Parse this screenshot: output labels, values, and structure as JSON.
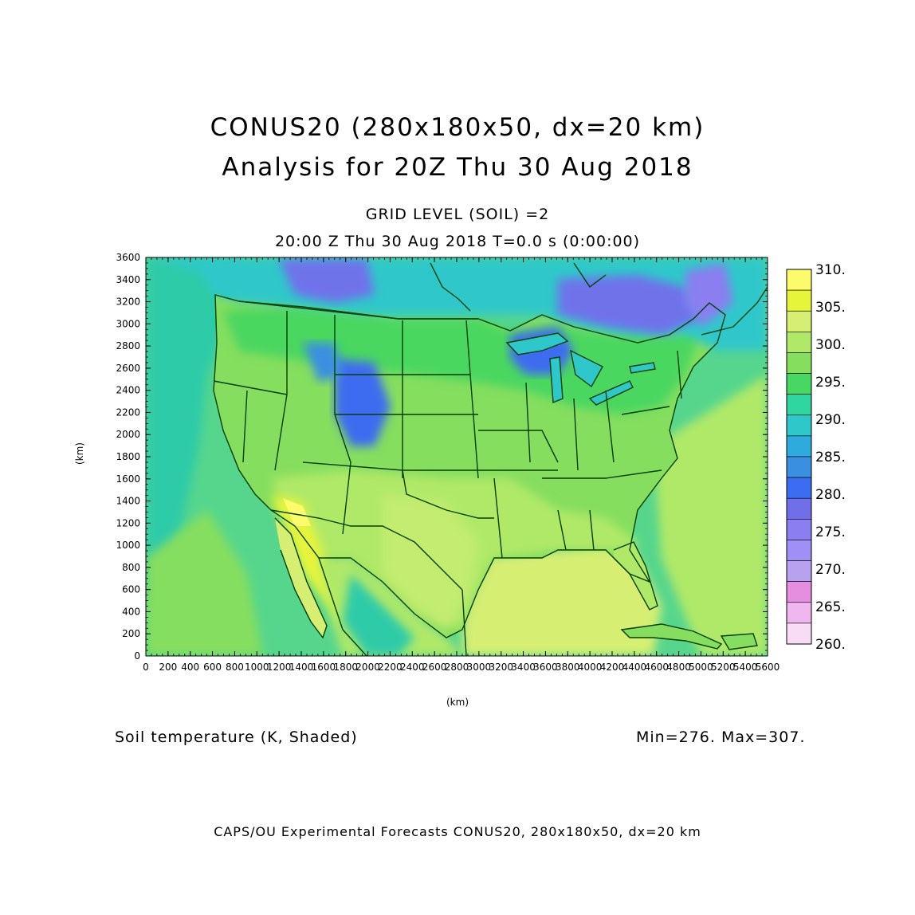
{
  "header": {
    "title1": "CONUS20 (280x180x50, dx=20 km)",
    "title2": "Analysis for 20Z Thu 30 Aug 2018",
    "subtitle1": "GRID LEVEL (SOIL) =2",
    "subtitle2": "20:00 Z Thu 30 Aug 2018    T=0.0 s (0:00:00)"
  },
  "field": {
    "label": "Soil temperature (K, Shaded)",
    "minmax": "Min=276. Max=307."
  },
  "footer": "CAPS/OU Experimental Forecasts  CONUS20, 280x180x50, dx=20 km",
  "axes": {
    "xlabel": "(km)",
    "ylabel": "(km)",
    "xrange": [
      0,
      5600
    ],
    "yrange": [
      0,
      3600
    ],
    "xticks": [
      "0",
      "200",
      "400",
      "600",
      "800",
      "1000",
      "1200",
      "1400",
      "1600",
      "1800",
      "2000",
      "2200",
      "2400",
      "2600",
      "2800",
      "3000",
      "3200",
      "3400",
      "3600",
      "3800",
      "4000",
      "4200",
      "4400",
      "4600",
      "4800",
      "5000",
      "5200",
      "5400",
      "5600"
    ],
    "yticks": [
      "0",
      "200",
      "400",
      "600",
      "800",
      "1000",
      "1200",
      "1400",
      "1600",
      "1800",
      "2000",
      "2200",
      "2400",
      "2600",
      "2800",
      "3000",
      "3200",
      "3400",
      "3600"
    ]
  },
  "colorbar": {
    "labels": [
      "310.",
      "305.",
      "300.",
      "295.",
      "290.",
      "285.",
      "280.",
      "275.",
      "270.",
      "265.",
      "260."
    ],
    "colors": [
      "#fbfb6b",
      "#e6f53a",
      "#d6ef73",
      "#b0e968",
      "#85de5e",
      "#48d760",
      "#30d6a0",
      "#2ec8ca",
      "#2eaadc",
      "#3a8fe0",
      "#3c6cf0",
      "#6f6fe8",
      "#8a7ef0",
      "#a090f5",
      "#b8a2ef",
      "#e58ee0",
      "#efb6ef",
      "#f8dcf6"
    ]
  },
  "colors": {
    "ocean": "#56d68c",
    "land_warm": "#c3ec71",
    "land_mid": "#7fdc62",
    "land_cool": "#2ecba8",
    "land_cold": "#6f72ea",
    "hot": "#f4f538",
    "borders": "#063f06"
  }
}
